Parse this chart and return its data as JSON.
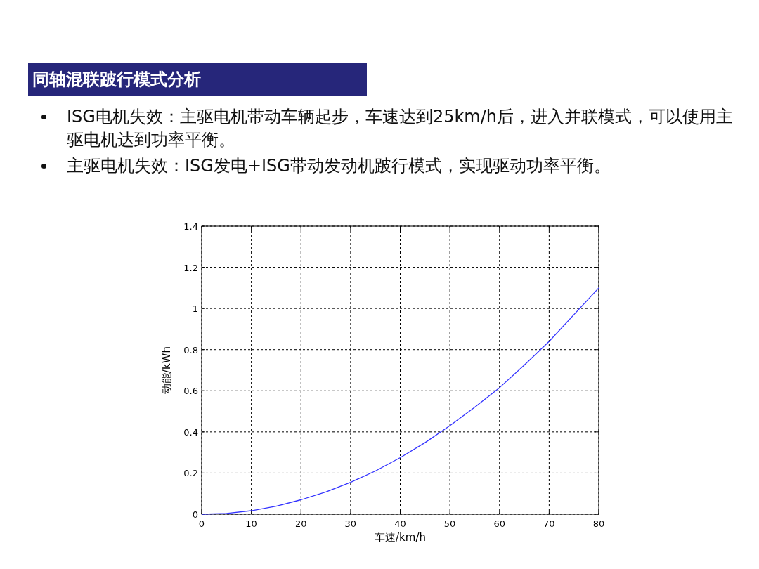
{
  "chart_data": {
    "type": "line",
    "title": "同轴混联跛行模式分析",
    "annotations": [
      "ISG电机失效：主驱电机带动车辆起步，车速达到25km/h后，进入并联模式，可以使用主驱电机达到功率平衡。",
      "主驱电机失效：ISG发电+ISG带动发动机跛行模式，实现驱动功率平衡。"
    ],
    "xlabel": "车速/km/h",
    "ylabel": "动能/kWh",
    "x": [
      0,
      5,
      10,
      15,
      20,
      25,
      30,
      35,
      40,
      45,
      50,
      55,
      60,
      65,
      70,
      75,
      80
    ],
    "series": [
      {
        "color": "#3333ff",
        "values": [
          0,
          0.004,
          0.017,
          0.039,
          0.07,
          0.108,
          0.155,
          0.21,
          0.275,
          0.348,
          0.43,
          0.52,
          0.615,
          0.725,
          0.84,
          0.97,
          1.1
        ]
      }
    ],
    "xlim": [
      0,
      80
    ],
    "ylim": [
      0,
      1.4
    ],
    "xticks": [
      0,
      10,
      20,
      30,
      40,
      50,
      60,
      70,
      80
    ],
    "yticks": [
      0,
      0.2,
      0.4,
      0.6,
      0.8,
      1,
      1.2,
      1.4
    ],
    "grid": true
  }
}
